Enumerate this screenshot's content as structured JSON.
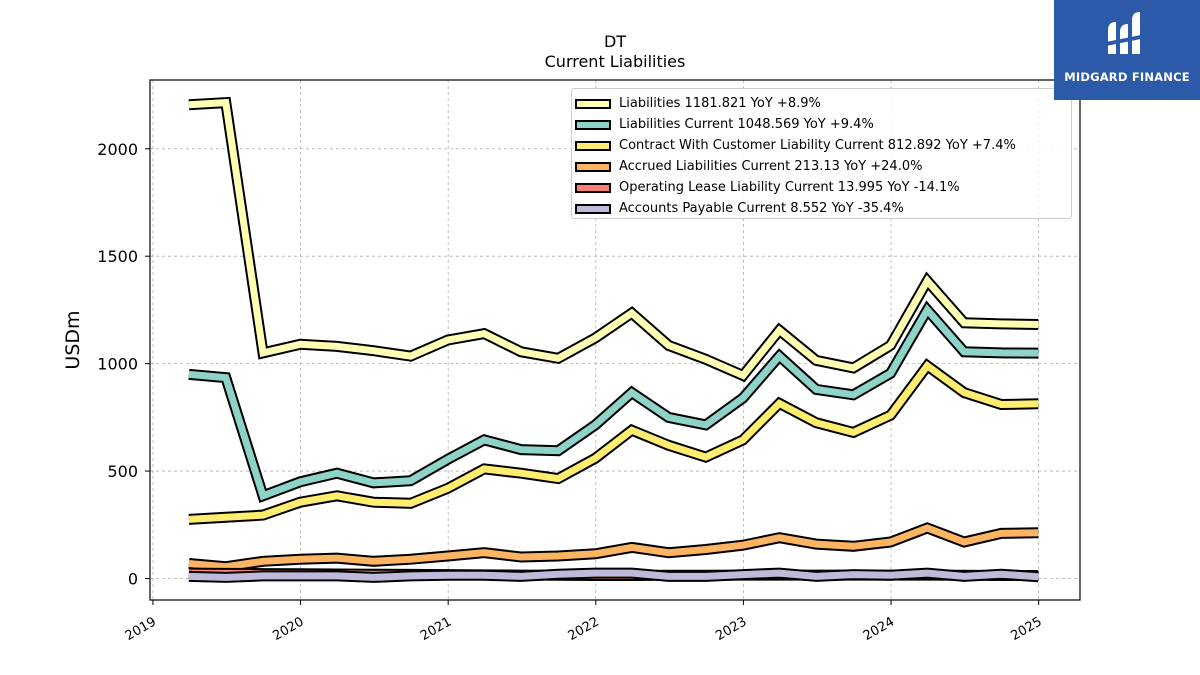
{
  "title": {
    "line1": "DT",
    "line2": "Current  Liabilities"
  },
  "logo": {
    "text": "MIDGARD FINANCE",
    "background": "#2c5aa8"
  },
  "chart_data": {
    "type": "line",
    "title": "DT Current  Liabilities",
    "ylabel": "USDm",
    "xlabel": "",
    "xlim": [
      2018.98,
      2025.28
    ],
    "ylim": [
      -100,
      2320
    ],
    "yticks": [
      0,
      500,
      1000,
      1500,
      2000
    ],
    "xticks": [
      2019,
      2020,
      2021,
      2022,
      2023,
      2024,
      2025
    ],
    "grid": true,
    "legend_position": "upper right",
    "x": [
      "2019-03-31",
      "2019-06-30",
      "2019-09-30",
      "2019-12-31",
      "2020-03-31",
      "2020-06-30",
      "2020-09-30",
      "2020-12-31",
      "2021-03-31",
      "2021-06-30",
      "2021-09-30",
      "2021-12-31",
      "2022-03-31",
      "2022-06-30",
      "2022-09-30",
      "2022-12-31",
      "2023-03-31",
      "2023-06-30",
      "2023-09-30",
      "2023-12-31",
      "2024-03-31",
      "2024-06-30",
      "2024-09-30",
      "2024-12-31"
    ],
    "series": [
      {
        "name": "Liabilities",
        "legend": "Liabilities  1181.821 YoY +8.9%",
        "color": "#ffffb3",
        "values": [
          2205,
          2215,
          1050,
          1090,
          1080,
          1060,
          1035,
          1110,
          1140,
          1055,
          1025,
          1120,
          1235,
          1085,
          1020,
          945,
          1155,
          1015,
          980,
          1085,
          1385,
          1190,
          1185,
          1182
        ]
      },
      {
        "name": "Liabilities Current",
        "legend": "Liabilities Current  1048.569 YoY +9.4%",
        "color": "#8dd3c7",
        "values": [
          950,
          935,
          385,
          450,
          490,
          445,
          455,
          555,
          645,
          600,
          595,
          715,
          865,
          750,
          715,
          840,
          1035,
          880,
          855,
          955,
          1250,
          1055,
          1050,
          1049
        ]
      },
      {
        "name": "Contract With Customer Liability Current",
        "legend": "Contract With Customer Liability Current  812.892 YoY +7.4%",
        "color": "#ffed6f",
        "values": [
          275,
          285,
          295,
          355,
          385,
          355,
          350,
          420,
          510,
          490,
          465,
          560,
          690,
          620,
          565,
          645,
          815,
          725,
          680,
          760,
          990,
          865,
          810,
          813
        ]
      },
      {
        "name": "Accrued Liabilities Current",
        "legend": "Accrued Liabilities Current  213.13 YoY +24.0%",
        "color": "#fdb462",
        "values": [
          70,
          55,
          80,
          90,
          95,
          80,
          90,
          105,
          120,
          100,
          105,
          115,
          145,
          120,
          135,
          155,
          190,
          160,
          150,
          170,
          235,
          170,
          210,
          213
        ]
      },
      {
        "name": "Operating Lease Liability Current",
        "legend": "Operating Lease Liability Current  13.995 YoY -14.1%",
        "color": "#fb8072",
        "values": [
          25,
          24,
          23,
          22,
          21,
          20,
          19,
          18,
          17,
          16,
          15,
          14,
          14,
          15,
          15,
          16,
          16,
          16,
          16,
          16,
          16,
          15,
          14,
          14
        ]
      },
      {
        "name": "Accounts Payable Current",
        "legend": "Accounts Payable Current  8.552 YoY -35.4%",
        "color": "#bebada",
        "values": [
          10,
          5,
          12,
          12,
          12,
          5,
          12,
          15,
          15,
          10,
          20,
          25,
          25,
          10,
          10,
          18,
          25,
          10,
          18,
          15,
          25,
          10,
          20,
          8.552
        ]
      }
    ]
  }
}
